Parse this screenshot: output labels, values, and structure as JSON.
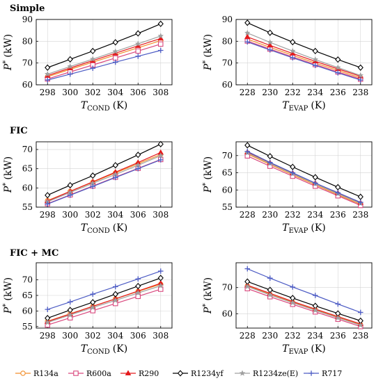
{
  "colors": {
    "R134a": "#f28e2b",
    "R600a": "#d9477d",
    "R290": "#e41a1c",
    "R1234yf": "#000000",
    "R1234ze(E)": "#a0a0a0",
    "R717": "#4c5bc4"
  },
  "markers": {
    "R134a": "circle",
    "R600a": "square",
    "R290": "triangle",
    "R1234yf": "diamond",
    "R1234ze(E)": "star",
    "R717": "plus"
  },
  "legend": [
    "R134a",
    "R600a",
    "R290",
    "R1234yf",
    "R1234ze(E)",
    "R717"
  ],
  "sections": [
    "Simple",
    "FIC",
    "FIC + MC"
  ],
  "chart_data": [
    {
      "type": "line",
      "section": "Simple",
      "x": [
        298,
        300,
        302,
        304,
        306,
        308
      ],
      "xlabel_main": "T",
      "xlabel_sub": "COND",
      "xlabel_unit": "(K)",
      "ylabel_main": "P",
      "ylabel_sup": "*",
      "ylabel_unit": "(kW)",
      "xlim": [
        297,
        309
      ],
      "ylim": [
        60,
        90
      ],
      "yticks": [
        60,
        70,
        80,
        90
      ],
      "series": [
        {
          "name": "R134a",
          "values": [
            63.7,
            67.1,
            70.4,
            73.7,
            77.0,
            80.3
          ]
        },
        {
          "name": "R600a",
          "values": [
            62.7,
            65.9,
            69.1,
            72.3,
            75.5,
            78.7
          ]
        },
        {
          "name": "R290",
          "values": [
            64.2,
            67.7,
            71.1,
            74.5,
            77.9,
            81.3
          ]
        },
        {
          "name": "R1234yf",
          "values": [
            67.9,
            71.7,
            75.5,
            79.5,
            83.6,
            88.0
          ]
        },
        {
          "name": "R1234ze(E)",
          "values": [
            64.9,
            68.4,
            71.8,
            75.3,
            78.8,
            82.4
          ]
        },
        {
          "name": "R717",
          "values": [
            62.2,
            64.9,
            67.6,
            70.4,
            73.1,
            75.8
          ]
        }
      ]
    },
    {
      "type": "line",
      "section": "Simple",
      "x": [
        228,
        230,
        232,
        234,
        236,
        238
      ],
      "xlabel_main": "T",
      "xlabel_sub": "EVAP",
      "xlabel_unit": "(K)",
      "ylabel_main": "P",
      "ylabel_sup": "*",
      "ylabel_unit": "(kW)",
      "xlim": [
        227,
        239
      ],
      "ylim": [
        60,
        90
      ],
      "yticks": [
        60,
        70,
        80,
        90
      ],
      "series": [
        {
          "name": "R134a",
          "values": [
            81.0,
            77.2,
            73.6,
            70.0,
            66.6,
            63.2
          ]
        },
        {
          "name": "R600a",
          "values": [
            80.1,
            76.4,
            72.8,
            69.3,
            65.9,
            62.6
          ]
        },
        {
          "name": "R290",
          "values": [
            82.0,
            78.1,
            74.4,
            70.8,
            67.3,
            63.9
          ]
        },
        {
          "name": "R1234yf",
          "values": [
            88.5,
            83.9,
            79.6,
            75.5,
            71.6,
            67.9
          ]
        },
        {
          "name": "R1234ze(E)",
          "values": [
            83.8,
            79.5,
            75.5,
            71.6,
            67.9,
            64.3
          ]
        },
        {
          "name": "R717",
          "values": [
            79.7,
            76.0,
            72.4,
            68.9,
            65.5,
            62.2
          ]
        }
      ]
    },
    {
      "type": "line",
      "section": "FIC",
      "x": [
        298,
        300,
        302,
        304,
        306,
        308
      ],
      "xlabel_main": "T",
      "xlabel_sub": "COND",
      "xlabel_unit": "(K)",
      "ylabel_main": "P",
      "ylabel_sup": "*",
      "ylabel_unit": "(kW)",
      "xlim": [
        297,
        309
      ],
      "ylim": [
        55,
        72
      ],
      "yticks": [
        55,
        60,
        65,
        70
      ],
      "series": [
        {
          "name": "R134a",
          "values": [
            56.7,
            59.1,
            61.5,
            63.9,
            66.3,
            68.7
          ]
        },
        {
          "name": "R600a",
          "values": [
            55.9,
            58.2,
            60.5,
            62.8,
            65.1,
            67.4
          ]
        },
        {
          "name": "R290",
          "values": [
            56.6,
            59.1,
            61.6,
            64.1,
            66.6,
            69.2
          ]
        },
        {
          "name": "R1234yf",
          "values": [
            58.1,
            60.7,
            63.2,
            65.9,
            68.6,
            71.4
          ]
        },
        {
          "name": "R1234ze(E)",
          "values": [
            56.4,
            58.8,
            61.2,
            63.5,
            65.9,
            68.4
          ]
        },
        {
          "name": "R717",
          "values": [
            55.8,
            58.1,
            60.4,
            62.7,
            65.0,
            67.3
          ]
        }
      ]
    },
    {
      "type": "line",
      "section": "FIC",
      "x": [
        228,
        230,
        232,
        234,
        236,
        238
      ],
      "xlabel_main": "T",
      "xlabel_sub": "EVAP",
      "xlabel_unit": "(K)",
      "ylabel_main": "P",
      "ylabel_sup": "*",
      "ylabel_unit": "(kW)",
      "xlim": [
        227,
        239
      ],
      "ylim": [
        55,
        74
      ],
      "yticks": [
        55,
        60,
        65,
        70
      ],
      "series": [
        {
          "name": "R134a",
          "values": [
            70.5,
            67.4,
            64.4,
            61.5,
            58.6,
            55.8
          ]
        },
        {
          "name": "R600a",
          "values": [
            69.9,
            66.9,
            64.0,
            61.1,
            58.3,
            55.5
          ]
        },
        {
          "name": "R290",
          "values": [
            71.0,
            67.9,
            64.9,
            62.0,
            59.1,
            56.3
          ]
        },
        {
          "name": "R1234yf",
          "values": [
            73.0,
            69.8,
            66.7,
            63.7,
            60.8,
            58.0
          ]
        },
        {
          "name": "R1234ze(E)",
          "values": [
            70.8,
            67.7,
            64.7,
            61.8,
            58.9,
            56.1
          ]
        },
        {
          "name": "R717",
          "values": [
            71.2,
            68.0,
            65.0,
            62.0,
            59.2,
            56.4
          ]
        }
      ]
    },
    {
      "type": "line",
      "section": "FIC + MC",
      "x": [
        298,
        300,
        302,
        304,
        306,
        308
      ],
      "xlabel_main": "T",
      "xlabel_sub": "COND",
      "xlabel_unit": "(K)",
      "ylabel_main": "P",
      "ylabel_sup": "*",
      "ylabel_unit": "(kW)",
      "xlim": [
        297,
        309
      ],
      "ylim": [
        54.5,
        75.5
      ],
      "yticks": [
        55,
        60,
        65,
        70
      ],
      "series": [
        {
          "name": "R134a",
          "values": [
            56.7,
            59.1,
            61.5,
            63.9,
            66.3,
            68.6
          ]
        },
        {
          "name": "R600a",
          "values": [
            55.5,
            57.8,
            60.1,
            62.4,
            64.7,
            67.0
          ]
        },
        {
          "name": "R290",
          "values": [
            56.6,
            59.0,
            61.5,
            63.9,
            66.4,
            68.9
          ]
        },
        {
          "name": "R1234yf",
          "values": [
            57.7,
            60.3,
            62.8,
            65.4,
            68.0,
            70.6
          ]
        },
        {
          "name": "R1234ze(E)",
          "values": [
            56.3,
            58.7,
            61.1,
            63.4,
            65.8,
            68.1
          ]
        },
        {
          "name": "R717",
          "values": [
            60.5,
            62.9,
            65.4,
            67.8,
            70.3,
            72.8
          ]
        }
      ]
    },
    {
      "type": "line",
      "section": "FIC + MC",
      "x": [
        228,
        230,
        232,
        234,
        236,
        238
      ],
      "xlabel_main": "T",
      "xlabel_sub": "EVAP",
      "xlabel_unit": "(K)",
      "ylabel_main": "P",
      "ylabel_sup": "*",
      "ylabel_unit": "(kW)",
      "xlim": [
        227,
        239
      ],
      "ylim": [
        54.5,
        79.5
      ],
      "yticks": [
        60,
        70
      ],
      "series": [
        {
          "name": "R134a",
          "values": [
            70.6,
            67.4,
            64.4,
            61.5,
            58.6,
            55.8
          ]
        },
        {
          "name": "R600a",
          "values": [
            69.6,
            66.5,
            63.6,
            60.7,
            57.9,
            55.1
          ]
        },
        {
          "name": "R290",
          "values": [
            70.9,
            67.8,
            64.7,
            61.8,
            58.9,
            56.1
          ]
        },
        {
          "name": "R1234yf",
          "values": [
            72.3,
            69.1,
            66.0,
            63.0,
            60.1,
            57.3
          ]
        },
        {
          "name": "R1234ze(E)",
          "values": [
            70.4,
            67.2,
            64.2,
            61.3,
            58.4,
            55.6
          ]
        },
        {
          "name": "R717",
          "values": [
            77.2,
            73.6,
            70.2,
            67.0,
            63.7,
            60.5
          ]
        }
      ]
    }
  ]
}
